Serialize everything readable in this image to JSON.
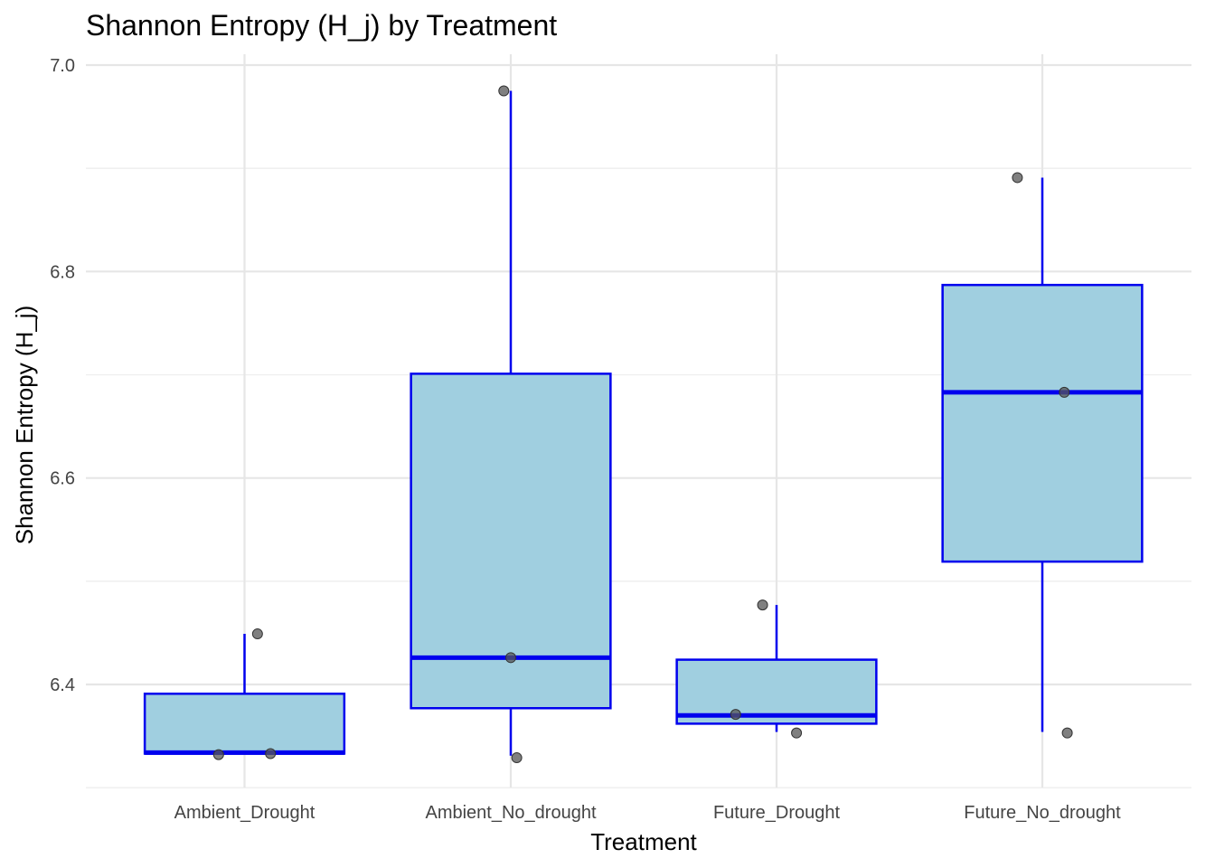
{
  "chart_data": {
    "type": "boxplot",
    "title": "Shannon Entropy (H_j) by Treatment",
    "xlabel": "Treatment",
    "ylabel": "Shannon Entropy (H_j)",
    "ylim": [
      6.3,
      7.0
    ],
    "yticks": [
      "6.4",
      "6.6",
      "6.8",
      "7.0"
    ],
    "grid": true,
    "categories": [
      "Ambient_Drought",
      "Ambient_No_drought",
      "Future_Drought",
      "Future_No_drought"
    ],
    "boxes": [
      {
        "category": "Ambient_Drought",
        "whisker_low": 6.333,
        "q1": 6.333,
        "median": 6.334,
        "q3": 6.391,
        "whisker_high": 6.449
      },
      {
        "category": "Ambient_No_drought",
        "whisker_low": 6.331,
        "q1": 6.377,
        "median": 6.426,
        "q3": 6.701,
        "whisker_high": 6.975
      },
      {
        "category": "Future_Drought",
        "whisker_low": 6.354,
        "q1": 6.362,
        "median": 6.37,
        "q3": 6.424,
        "whisker_high": 6.477
      },
      {
        "category": "Future_No_drought",
        "whisker_low": 6.354,
        "q1": 6.519,
        "median": 6.683,
        "q3": 6.787,
        "whisker_high": 6.891
      }
    ],
    "points": [
      {
        "category": "Ambient_Drought",
        "jitter": -0.26,
        "y": 6.332
      },
      {
        "category": "Ambient_Drought",
        "jitter": 0.26,
        "y": 6.333
      },
      {
        "category": "Ambient_Drought",
        "jitter": 0.13,
        "y": 6.449
      },
      {
        "category": "Ambient_No_drought",
        "jitter": -0.07,
        "y": 6.975
      },
      {
        "category": "Ambient_No_drought",
        "jitter": 0.0,
        "y": 6.426
      },
      {
        "category": "Ambient_No_drought",
        "jitter": 0.06,
        "y": 6.329
      },
      {
        "category": "Future_Drought",
        "jitter": -0.14,
        "y": 6.477
      },
      {
        "category": "Future_Drought",
        "jitter": -0.41,
        "y": 6.371
      },
      {
        "category": "Future_Drought",
        "jitter": 0.2,
        "y": 6.353
      },
      {
        "category": "Future_No_drought",
        "jitter": -0.25,
        "y": 6.891
      },
      {
        "category": "Future_No_drought",
        "jitter": 0.22,
        "y": 6.683
      },
      {
        "category": "Future_No_drought",
        "jitter": 0.25,
        "y": 6.353
      }
    ],
    "colors": {
      "box_fill": "#a0cfe0",
      "box_line": "#0000ee",
      "point": "#555555"
    }
  }
}
